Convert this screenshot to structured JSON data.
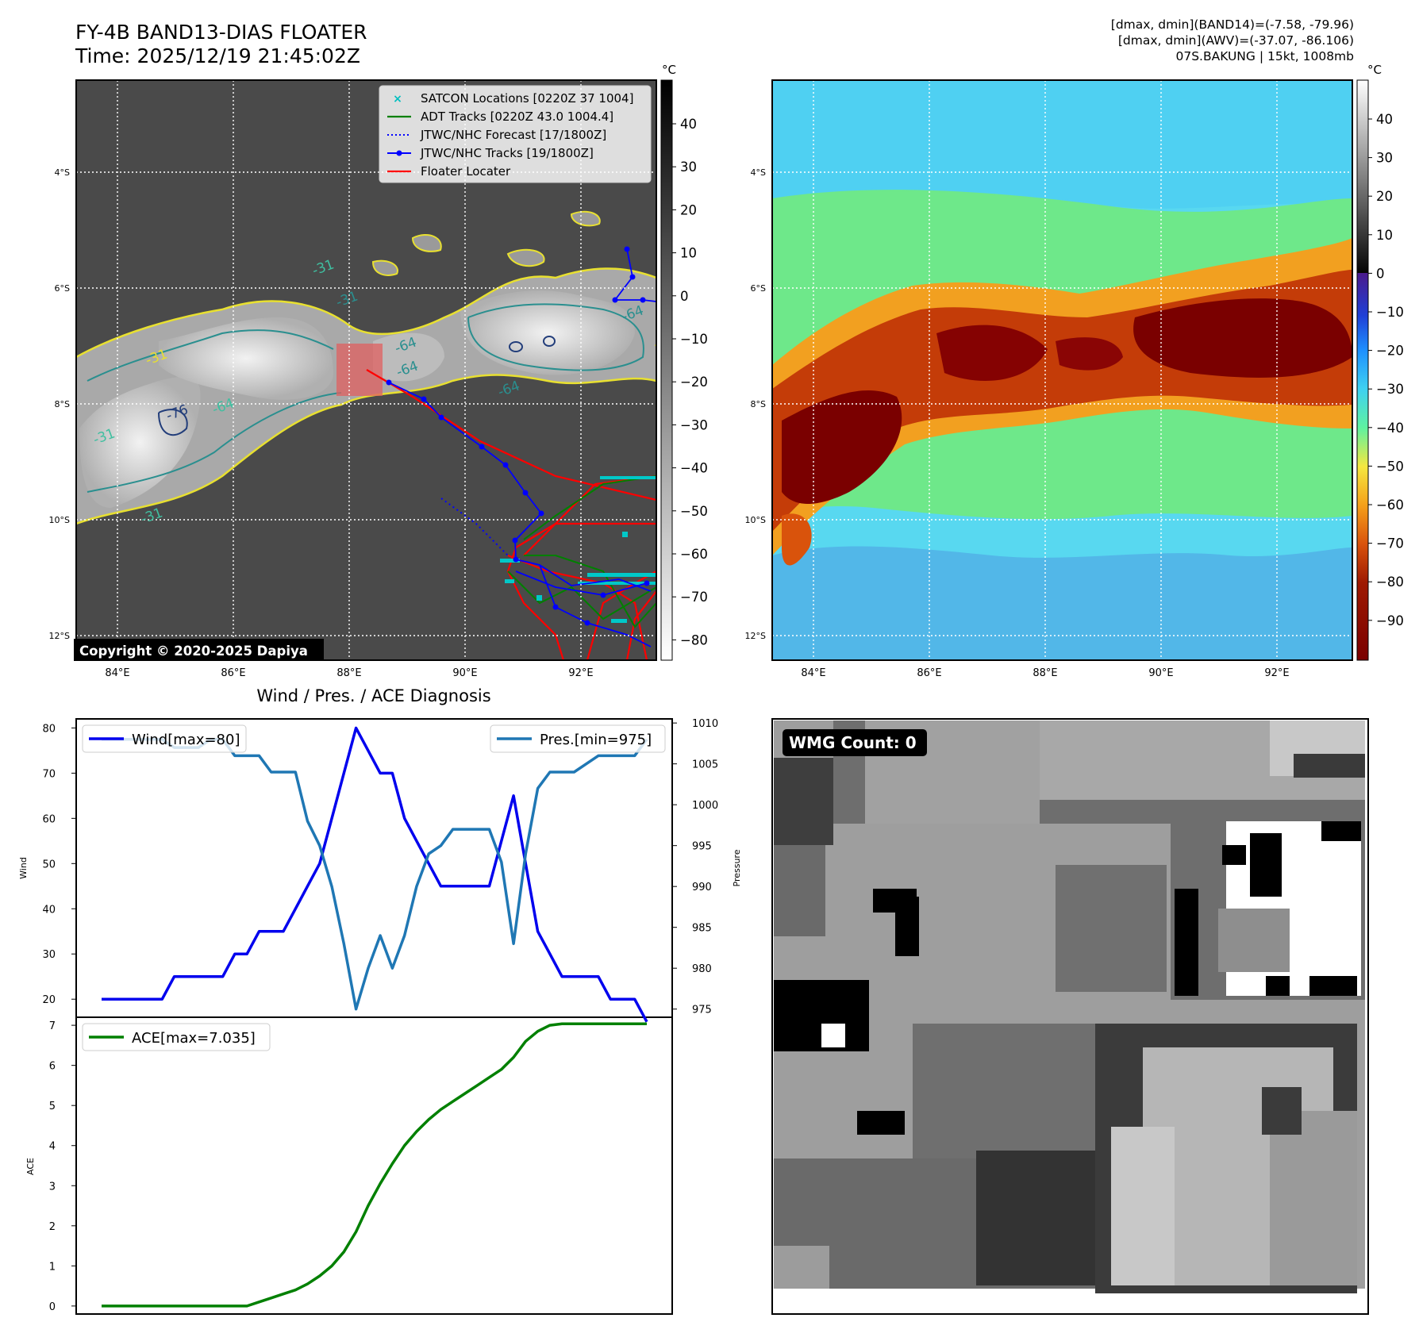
{
  "header": {
    "title": "FY-4B BAND13-DIAS FLOATER",
    "time": "Time: 2025/12/19 21:45:02Z",
    "info_line1": "[dmax, dmin](BAND14)=(-7.58, -79.96)",
    "info_line2": "[dmax, dmin](AWV)=(-37.07, -86.106)",
    "info_line3": "07S.BAKUNG | 15kt, 1008mb"
  },
  "ir_panel": {
    "lat_labels": [
      "4°S",
      "6°S",
      "8°S",
      "10°S",
      "12°S"
    ],
    "lon_labels": [
      "84°E",
      "86°E",
      "88°E",
      "90°E",
      "92°E"
    ],
    "colorbar_unit": "°C",
    "colorbar_ticks": [
      "40",
      "30",
      "20",
      "10",
      "0",
      "−10",
      "−20",
      "−30",
      "−40",
      "−50",
      "−60",
      "−70",
      "−80"
    ],
    "contour_labels": [
      "-31",
      "-31",
      "-64",
      "-64",
      "-76",
      "-64",
      "-31",
      "-64",
      "-64",
      "-31",
      "-31",
      "-31"
    ],
    "copyright": "Copyright © 2020-2025 Dapiya",
    "legend": [
      {
        "label": "SATCON Locations [0220Z 37 1004]",
        "color": "#00bfbf",
        "marker": "x"
      },
      {
        "label": "ADT Tracks [0220Z 43.0 1004.4]",
        "color": "#008000",
        "marker": "line"
      },
      {
        "label": "JTWC/NHC Forecast [17/1800Z]",
        "color": "#0000ff",
        "marker": "dotted"
      },
      {
        "label": "JTWC/NHC Tracks [19/1800Z]",
        "color": "#0000ff",
        "marker": "dot-line"
      },
      {
        "label": "Floater Locater",
        "color": "#ff0000",
        "marker": "line"
      }
    ]
  },
  "wv_panel": {
    "lat_labels": [
      "4°S",
      "6°S",
      "8°S",
      "10°S",
      "12°S"
    ],
    "lon_labels": [
      "84°E",
      "86°E",
      "88°E",
      "90°E",
      "92°E"
    ],
    "colorbar_unit": "°C",
    "colorbar_ticks": [
      "40",
      "30",
      "20",
      "10",
      "0",
      "−10",
      "−20",
      "−30",
      "−40",
      "−50",
      "−60",
      "−70",
      "−80",
      "−90"
    ]
  },
  "diag": {
    "title": "Wind / Pres. / ACE Diagnosis",
    "wind_ylabel": "Wind",
    "pres_ylabel": "Pressure",
    "ace_ylabel": "ACE",
    "wind_ticks": [
      "80",
      "70",
      "60",
      "50",
      "40",
      "30",
      "20"
    ],
    "pres_ticks": [
      "1010",
      "1005",
      "1000",
      "995",
      "990",
      "985",
      "980",
      "975"
    ],
    "ace_ticks": [
      "7",
      "6",
      "5",
      "4",
      "3",
      "2",
      "1",
      "0"
    ],
    "wind_legend": "Wind[max=80]",
    "pres_legend": "Pres.[min=975]",
    "ace_legend": "ACE[max=7.035]",
    "wind_color": "#0000ee",
    "pres_color": "#1f77b4",
    "ace_color": "#008000"
  },
  "wmg": {
    "label": "WMG Count: 0"
  },
  "chart_data": [
    {
      "type": "line",
      "title": "Wind / Pres. / ACE Diagnosis",
      "ylabel": "Wind",
      "ylim": [
        16,
        82
      ],
      "series": [
        {
          "name": "Wind[max=80]",
          "values": [
            20,
            20,
            20,
            20,
            20,
            20,
            25,
            25,
            25,
            25,
            25,
            30,
            30,
            35,
            35,
            35,
            40,
            45,
            50,
            60,
            70,
            80,
            75,
            70,
            70,
            60,
            55,
            50,
            45,
            45,
            45,
            45,
            45,
            55,
            65,
            50,
            35,
            30,
            25,
            25,
            25,
            25,
            20,
            20,
            20,
            15
          ]
        }
      ]
    },
    {
      "type": "line",
      "ylabel": "Pressure",
      "ylim": [
        974,
        1010.5
      ],
      "series": [
        {
          "name": "Pres.[min=975]",
          "values": [
            1008,
            1008,
            1008,
            1008,
            1008,
            1008,
            1007,
            1007,
            1007,
            1008,
            1008,
            1006,
            1006,
            1006,
            1004,
            1004,
            1004,
            998,
            995,
            990,
            983,
            975,
            980,
            984,
            980,
            984,
            990,
            994,
            995,
            997,
            997,
            997,
            997,
            993,
            983,
            994,
            1002,
            1004,
            1004,
            1004,
            1005,
            1006,
            1006,
            1006,
            1006,
            1008
          ]
        }
      ]
    },
    {
      "type": "area",
      "ylabel": "ACE",
      "ylim": [
        -0.2,
        7.2
      ],
      "series": [
        {
          "name": "ACE[max=7.035]",
          "values": [
            0,
            0,
            0,
            0,
            0,
            0,
            0,
            0,
            0,
            0,
            0,
            0,
            0,
            0.1,
            0.2,
            0.3,
            0.4,
            0.55,
            0.75,
            1.0,
            1.35,
            1.85,
            2.5,
            3.05,
            3.55,
            4.0,
            4.35,
            4.65,
            4.9,
            5.1,
            5.3,
            5.5,
            5.7,
            5.9,
            6.2,
            6.6,
            6.85,
            7.0,
            7.035,
            7.035,
            7.035,
            7.035,
            7.035,
            7.035,
            7.035,
            7.035
          ]
        }
      ]
    }
  ]
}
